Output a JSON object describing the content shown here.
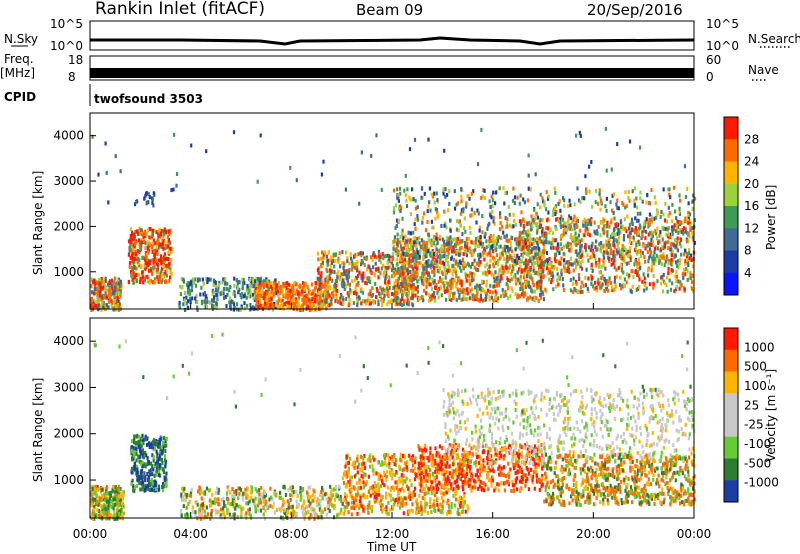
{
  "header": {
    "station": "Rankin Inlet (fitACF)",
    "beam": "Beam 09",
    "date": "20/Sep/2016"
  },
  "top_panels": {
    "nsky_label": "N.Sky",
    "nsky_ticks": [
      "10^5",
      "10^0"
    ],
    "nsearch_label": "N.Search",
    "nsearch_ticks": [
      "10^5",
      "10^0"
    ],
    "freq_label": "Freq.",
    "freq_unit": "[MHz]",
    "freq_ticks": [
      "18",
      "8"
    ],
    "nave_label": "Nave",
    "nave_ticks": [
      "60",
      "0"
    ],
    "cpid_label": "CPID",
    "cpid_value": "twofsound 3503"
  },
  "colors": {
    "power_scale": [
      "#0a14ff",
      "#1a3ea6",
      "#3f6b94",
      "#3f9a55",
      "#9bd23a",
      "#ffb400",
      "#ff6a00",
      "#ff1a00"
    ],
    "velocity_scale": [
      "#ff1a00",
      "#ff6a00",
      "#ffb400",
      "#c8c8c8",
      "#c8c8c8",
      "#66cc33",
      "#2e7d32",
      "#1a3ea6"
    ]
  },
  "chart_data": [
    {
      "type": "heatmap",
      "name": "power",
      "ylabel": "Slant Range [km]",
      "y_ticks": [
        "1000",
        "2000",
        "3000",
        "4000"
      ],
      "ylim": [
        180,
        4500
      ],
      "x_ticks": [
        "00:00",
        "04:00",
        "08:00",
        "12:00",
        "16:00",
        "20:00",
        "00:00"
      ],
      "colorbar_label": "Power [dB]",
      "colorbar_ticks": [
        "28",
        "24",
        "20",
        "16",
        "12",
        "8",
        "4"
      ],
      "colorbar_range": [
        0,
        32
      ]
    },
    {
      "type": "heatmap",
      "name": "velocity",
      "ylabel": "Slant Range [km]",
      "y_ticks": [
        "1000",
        "2000",
        "3000",
        "4000"
      ],
      "ylim": [
        180,
        4500
      ],
      "x_ticks": [
        "00:00",
        "04:00",
        "08:00",
        "12:00",
        "16:00",
        "20:00",
        "00:00"
      ],
      "xlabel": "Time UT",
      "colorbar_label": "Velocity [m s⁻¹]",
      "colorbar_ticks": [
        "1000",
        "500",
        "100",
        "25",
        "-25",
        "-100",
        "-500",
        "-1000"
      ]
    }
  ]
}
